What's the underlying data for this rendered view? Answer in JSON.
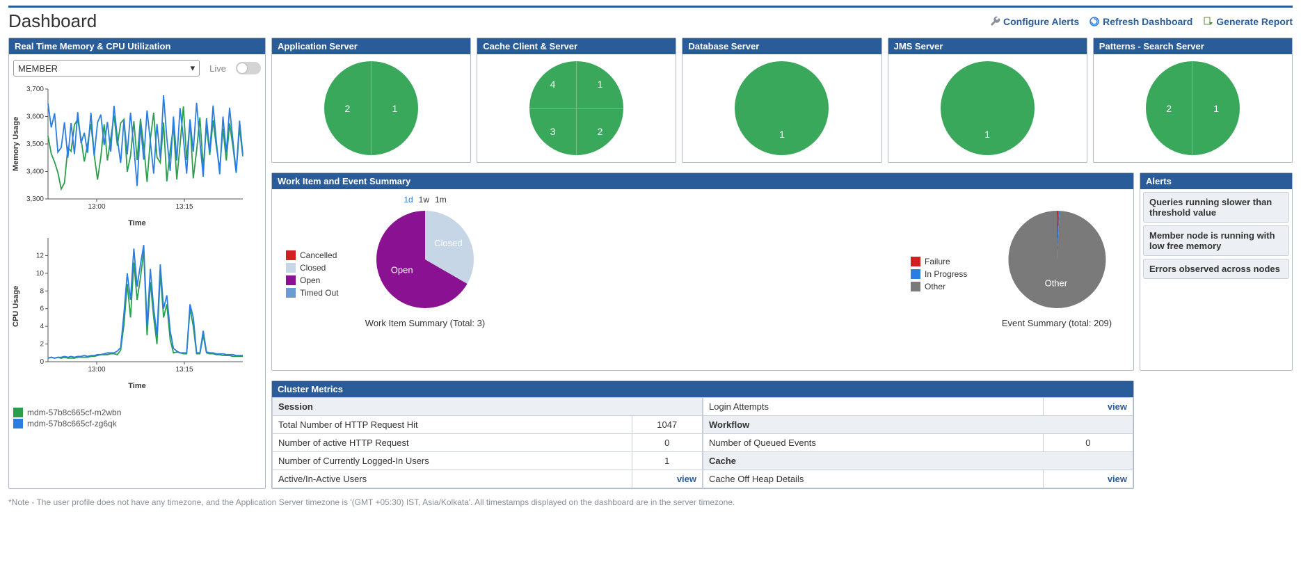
{
  "page": {
    "title": "Dashboard"
  },
  "actions": {
    "configure": "Configure Alerts",
    "refresh": "Refresh Dashboard",
    "generate": "Generate Report"
  },
  "realtime": {
    "title": "Real Time Memory & CPU Utilization",
    "select_value": "MEMBER",
    "live_label": "Live",
    "xlabel": "Time",
    "mem_ylabel": "Memory Usage",
    "cpu_ylabel": "CPU Usage",
    "series_colors": [
      "#2a9e4b",
      "#2a7de1"
    ],
    "series_names": [
      "mdm-57b8c665cf-m2wbn",
      "mdm-57b8c665cf-zg6qk"
    ],
    "mem": {
      "ylim": [
        3300,
        3700
      ],
      "yticks": [
        3300,
        3400,
        3500,
        3600,
        3700
      ],
      "xticks": [
        "13:00",
        "13:15"
      ],
      "series": [
        [
          3529,
          3464,
          3434,
          3396,
          3336,
          3359,
          3487,
          3474,
          3570,
          3590,
          3518,
          3436,
          3500,
          3573,
          3460,
          3370,
          3452,
          3572,
          3440,
          3521,
          3604,
          3494,
          3576,
          3590,
          3399,
          3457,
          3583,
          3442,
          3592,
          3493,
          3362,
          3517,
          3614,
          3452,
          3432,
          3578,
          3364,
          3476,
          3566,
          3371,
          3496,
          3637,
          3442,
          3584,
          3375,
          3476,
          3597,
          3414,
          3565,
          3460,
          3586,
          3490,
          3410,
          3556,
          3440,
          3575,
          3490,
          3395,
          3560,
          3455
        ],
        [
          3647,
          3560,
          3612,
          3470,
          3487,
          3579,
          3450,
          3576,
          3463,
          3616,
          3503,
          3541,
          3468,
          3614,
          3457,
          3578,
          3607,
          3496,
          3580,
          3472,
          3639,
          3520,
          3431,
          3589,
          3462,
          3614,
          3488,
          3347,
          3570,
          3443,
          3622,
          3510,
          3392,
          3573,
          3448,
          3677,
          3521,
          3402,
          3600,
          3440,
          3631,
          3522,
          3392,
          3590,
          3472,
          3650,
          3510,
          3381,
          3594,
          3470,
          3640,
          3508,
          3390,
          3600,
          3468,
          3632,
          3512,
          3398,
          3585,
          3463
        ]
      ]
    },
    "cpu": {
      "ylim": [
        0,
        14
      ],
      "yticks": [
        0,
        2,
        4,
        6,
        8,
        10,
        12
      ],
      "xticks": [
        "13:00",
        "13:15"
      ],
      "series": [
        [
          0.4,
          0.5,
          0.4,
          0.5,
          0.4,
          0.5,
          0.4,
          0.4,
          0.4,
          0.5,
          0.5,
          0.5,
          0.5,
          0.6,
          0.6,
          0.7,
          0.8,
          0.8,
          0.8,
          0.9,
          0.9,
          0.8,
          1.3,
          4.2,
          8.8,
          5.0,
          11.2,
          7.0,
          9.5,
          12.5,
          3.0,
          9.0,
          5.0,
          2.0,
          10.0,
          5.0,
          6.5,
          2.5,
          1.0,
          1.1,
          1.0,
          0.9,
          0.9,
          6.0,
          4.0,
          0.9,
          0.9,
          3.0,
          1.0,
          0.9,
          0.9,
          0.8,
          0.8,
          0.7,
          0.7,
          0.7,
          0.6,
          0.6,
          0.6,
          0.6
        ],
        [
          0.4,
          0.5,
          0.4,
          0.5,
          0.5,
          0.6,
          0.5,
          0.6,
          0.5,
          0.6,
          0.6,
          0.7,
          0.6,
          0.7,
          0.7,
          0.8,
          0.8,
          0.9,
          1.0,
          1.0,
          1.0,
          1.2,
          1.6,
          5.5,
          10.0,
          7.0,
          12.8,
          8.5,
          11.0,
          13.2,
          4.0,
          10.5,
          6.0,
          3.0,
          11.0,
          6.0,
          7.5,
          3.5,
          1.5,
          1.2,
          1.0,
          1.0,
          1.0,
          6.5,
          5.0,
          1.0,
          1.0,
          3.5,
          1.1,
          1.0,
          1.0,
          0.9,
          0.9,
          0.9,
          0.8,
          0.8,
          0.8,
          0.7,
          0.7,
          0.7
        ]
      ]
    }
  },
  "statusPanels": [
    {
      "title": "Application Server",
      "color": "#39a85b",
      "slices": [
        "2",
        "1"
      ]
    },
    {
      "title": "Cache Client & Server",
      "color": "#39a85b",
      "slices": [
        "4",
        "1",
        "3",
        "2"
      ]
    },
    {
      "title": "Database Server",
      "color": "#39a85b",
      "slices": [
        "1"
      ]
    },
    {
      "title": "JMS Server",
      "color": "#39a85b",
      "slices": [
        "1"
      ]
    },
    {
      "title": "Patterns - Search Server",
      "color": "#39a85b",
      "slices": [
        "2",
        "1"
      ]
    }
  ],
  "workItems": {
    "title": "Work Item and Event Summary",
    "timeRanges": [
      "1d",
      "1w",
      "1m"
    ],
    "timeActive": "1d",
    "pie1": {
      "caption": "Work Item Summary (Total: 3)",
      "legend": [
        {
          "label": "Cancelled",
          "color": "#d22020",
          "value": 0
        },
        {
          "label": "Closed",
          "color": "#c6d6e6",
          "value": 1
        },
        {
          "label": "Open",
          "color": "#8a1192",
          "value": 2
        },
        {
          "label": "Timed Out",
          "color": "#6a9bd1",
          "value": 0
        }
      ]
    },
    "pie2": {
      "caption": "Event Summary (total: 209)",
      "legend": [
        {
          "label": "Failure",
          "color": "#d22020",
          "value": 1
        },
        {
          "label": "In Progress",
          "color": "#2a7de1",
          "value": 1
        },
        {
          "label": "Other",
          "color": "#7a7a7a",
          "value": 207
        }
      ]
    }
  },
  "alerts": {
    "title": "Alerts",
    "items": [
      "Queries running slower than threshold value",
      "Member node is running with low free memory",
      "Errors observed across nodes"
    ]
  },
  "metrics": {
    "title": "Cluster Metrics",
    "left": {
      "section": "Session",
      "rows": [
        {
          "label": "Total Number of HTTP Request Hit",
          "value": "1047"
        },
        {
          "label": "Number of active HTTP Request",
          "value": "0"
        },
        {
          "label": "Number of Currently Logged-In Users",
          "value": "1"
        },
        {
          "label": "Active/In-Active Users",
          "value": "view",
          "isLink": true
        }
      ]
    },
    "right": {
      "rows": [
        {
          "label": "Login Attempts",
          "value": "view",
          "isLink": true
        },
        {
          "section": "Workflow"
        },
        {
          "label": "Number of Queued Events",
          "value": "0"
        },
        {
          "section": "Cache"
        },
        {
          "label": "Cache Off Heap Details",
          "value": "view",
          "isLink": true
        }
      ]
    }
  },
  "footnote": "*Note - The user profile does not have any timezone, and the Application Server timezone is '(GMT +05:30) IST, Asia/Kolkata'. All timestamps displayed on the dashboard are in the server timezone."
}
